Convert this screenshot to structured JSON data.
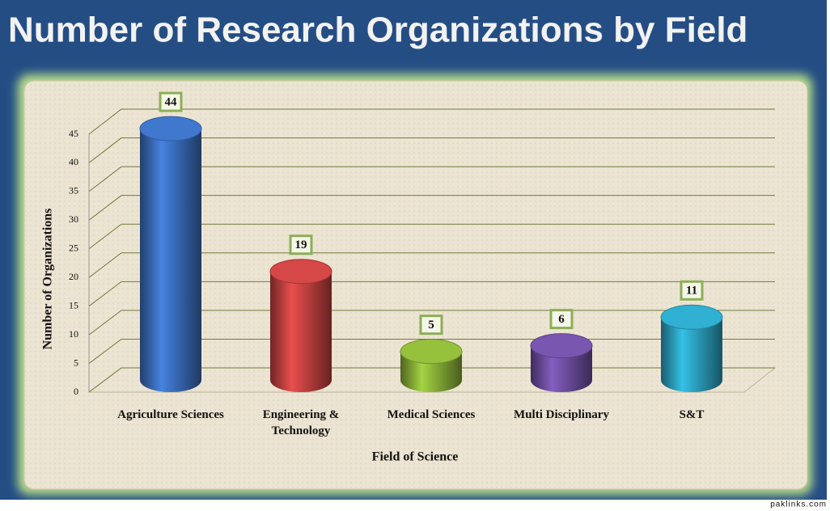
{
  "chart_data": {
    "type": "bar3d",
    "title": "Number of Research Organizations by Field",
    "categories": [
      "Agriculture Sciences",
      "Engineering & Technology",
      "Medical Sciences",
      "Multi Disciplinary",
      "S&T"
    ],
    "values": [
      44,
      19,
      5,
      6,
      11
    ],
    "colors": [
      "#3d72c4",
      "#cc4444",
      "#8fb83a",
      "#7352a8",
      "#2ea8c8"
    ],
    "ylim": [
      0,
      45
    ],
    "yticks": [
      0,
      5,
      10,
      15,
      20,
      25,
      30,
      35,
      40,
      45
    ],
    "grid": true,
    "xlabel": "Field of Science",
    "ylabel": "Number of Organizations"
  },
  "watermark": "paklinks.com"
}
